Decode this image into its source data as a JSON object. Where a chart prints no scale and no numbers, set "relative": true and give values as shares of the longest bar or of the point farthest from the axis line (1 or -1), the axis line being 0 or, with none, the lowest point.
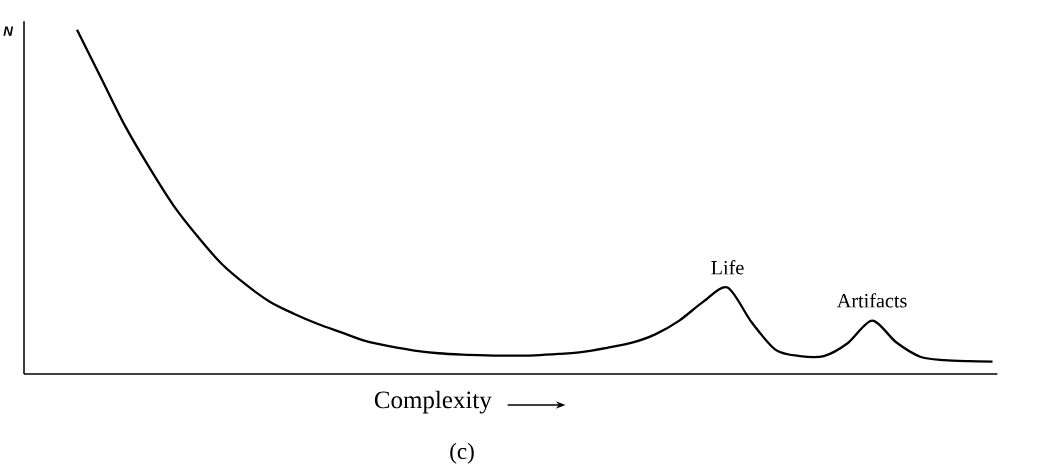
{
  "chart_data": {
    "type": "line",
    "relative": true,
    "ylabel": "N",
    "xlabel": "Complexity",
    "annotations": [
      "Life",
      "Artifacts",
      "(c)"
    ],
    "categories": [
      null,
      null,
      null,
      null,
      null,
      null,
      null,
      null,
      null,
      null,
      null,
      null,
      null,
      null,
      null,
      null,
      null,
      null,
      null,
      null,
      null,
      null,
      null,
      null,
      null,
      null,
      null,
      null,
      null,
      null,
      null,
      null,
      null,
      null,
      null,
      null,
      null,
      null,
      null
    ],
    "series": [
      {
        "color": "#000000",
        "values": [
          1.0,
          0.86,
          0.72,
          0.6,
          0.49,
          0.4,
          0.32,
          0.26,
          0.21,
          0.175,
          0.145,
          0.12,
          0.095,
          0.08,
          0.068,
          0.06,
          0.056,
          0.054,
          0.053,
          0.054,
          0.058,
          0.064,
          0.076,
          0.09,
          0.115,
          0.155,
          0.21,
          0.251,
          0.15,
          0.07,
          0.052,
          0.052,
          0.09,
          0.155,
          0.092,
          0.05,
          0.04,
          0.037,
          0.036
        ]
      }
    ],
    "marker": "none",
    "line_style": "solid"
  }
}
